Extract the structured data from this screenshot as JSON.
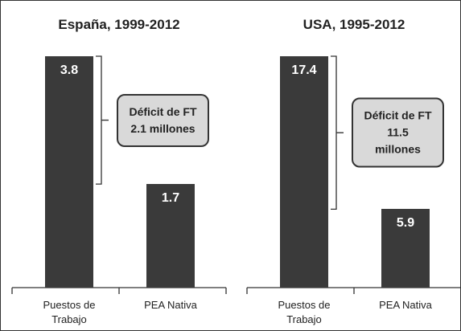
{
  "chart_data": [
    {
      "type": "bar",
      "title": "España, 1999-2012",
      "categories": [
        "Puestos de Trabajo",
        "PEA Nativa"
      ],
      "values": [
        3.8,
        1.7
      ],
      "color": "#3a3a3a",
      "annotation": [
        "Déficit de FT",
        "2.1 millones"
      ]
    },
    {
      "type": "bar",
      "title": "USA, 1995-2012",
      "categories": [
        "Puestos de Trabajo",
        "PEA Nativa"
      ],
      "values": [
        17.4,
        5.9
      ],
      "color": "#3a3a3a",
      "annotation": [
        "Déficit de FT",
        "11.5",
        "millones"
      ]
    }
  ]
}
